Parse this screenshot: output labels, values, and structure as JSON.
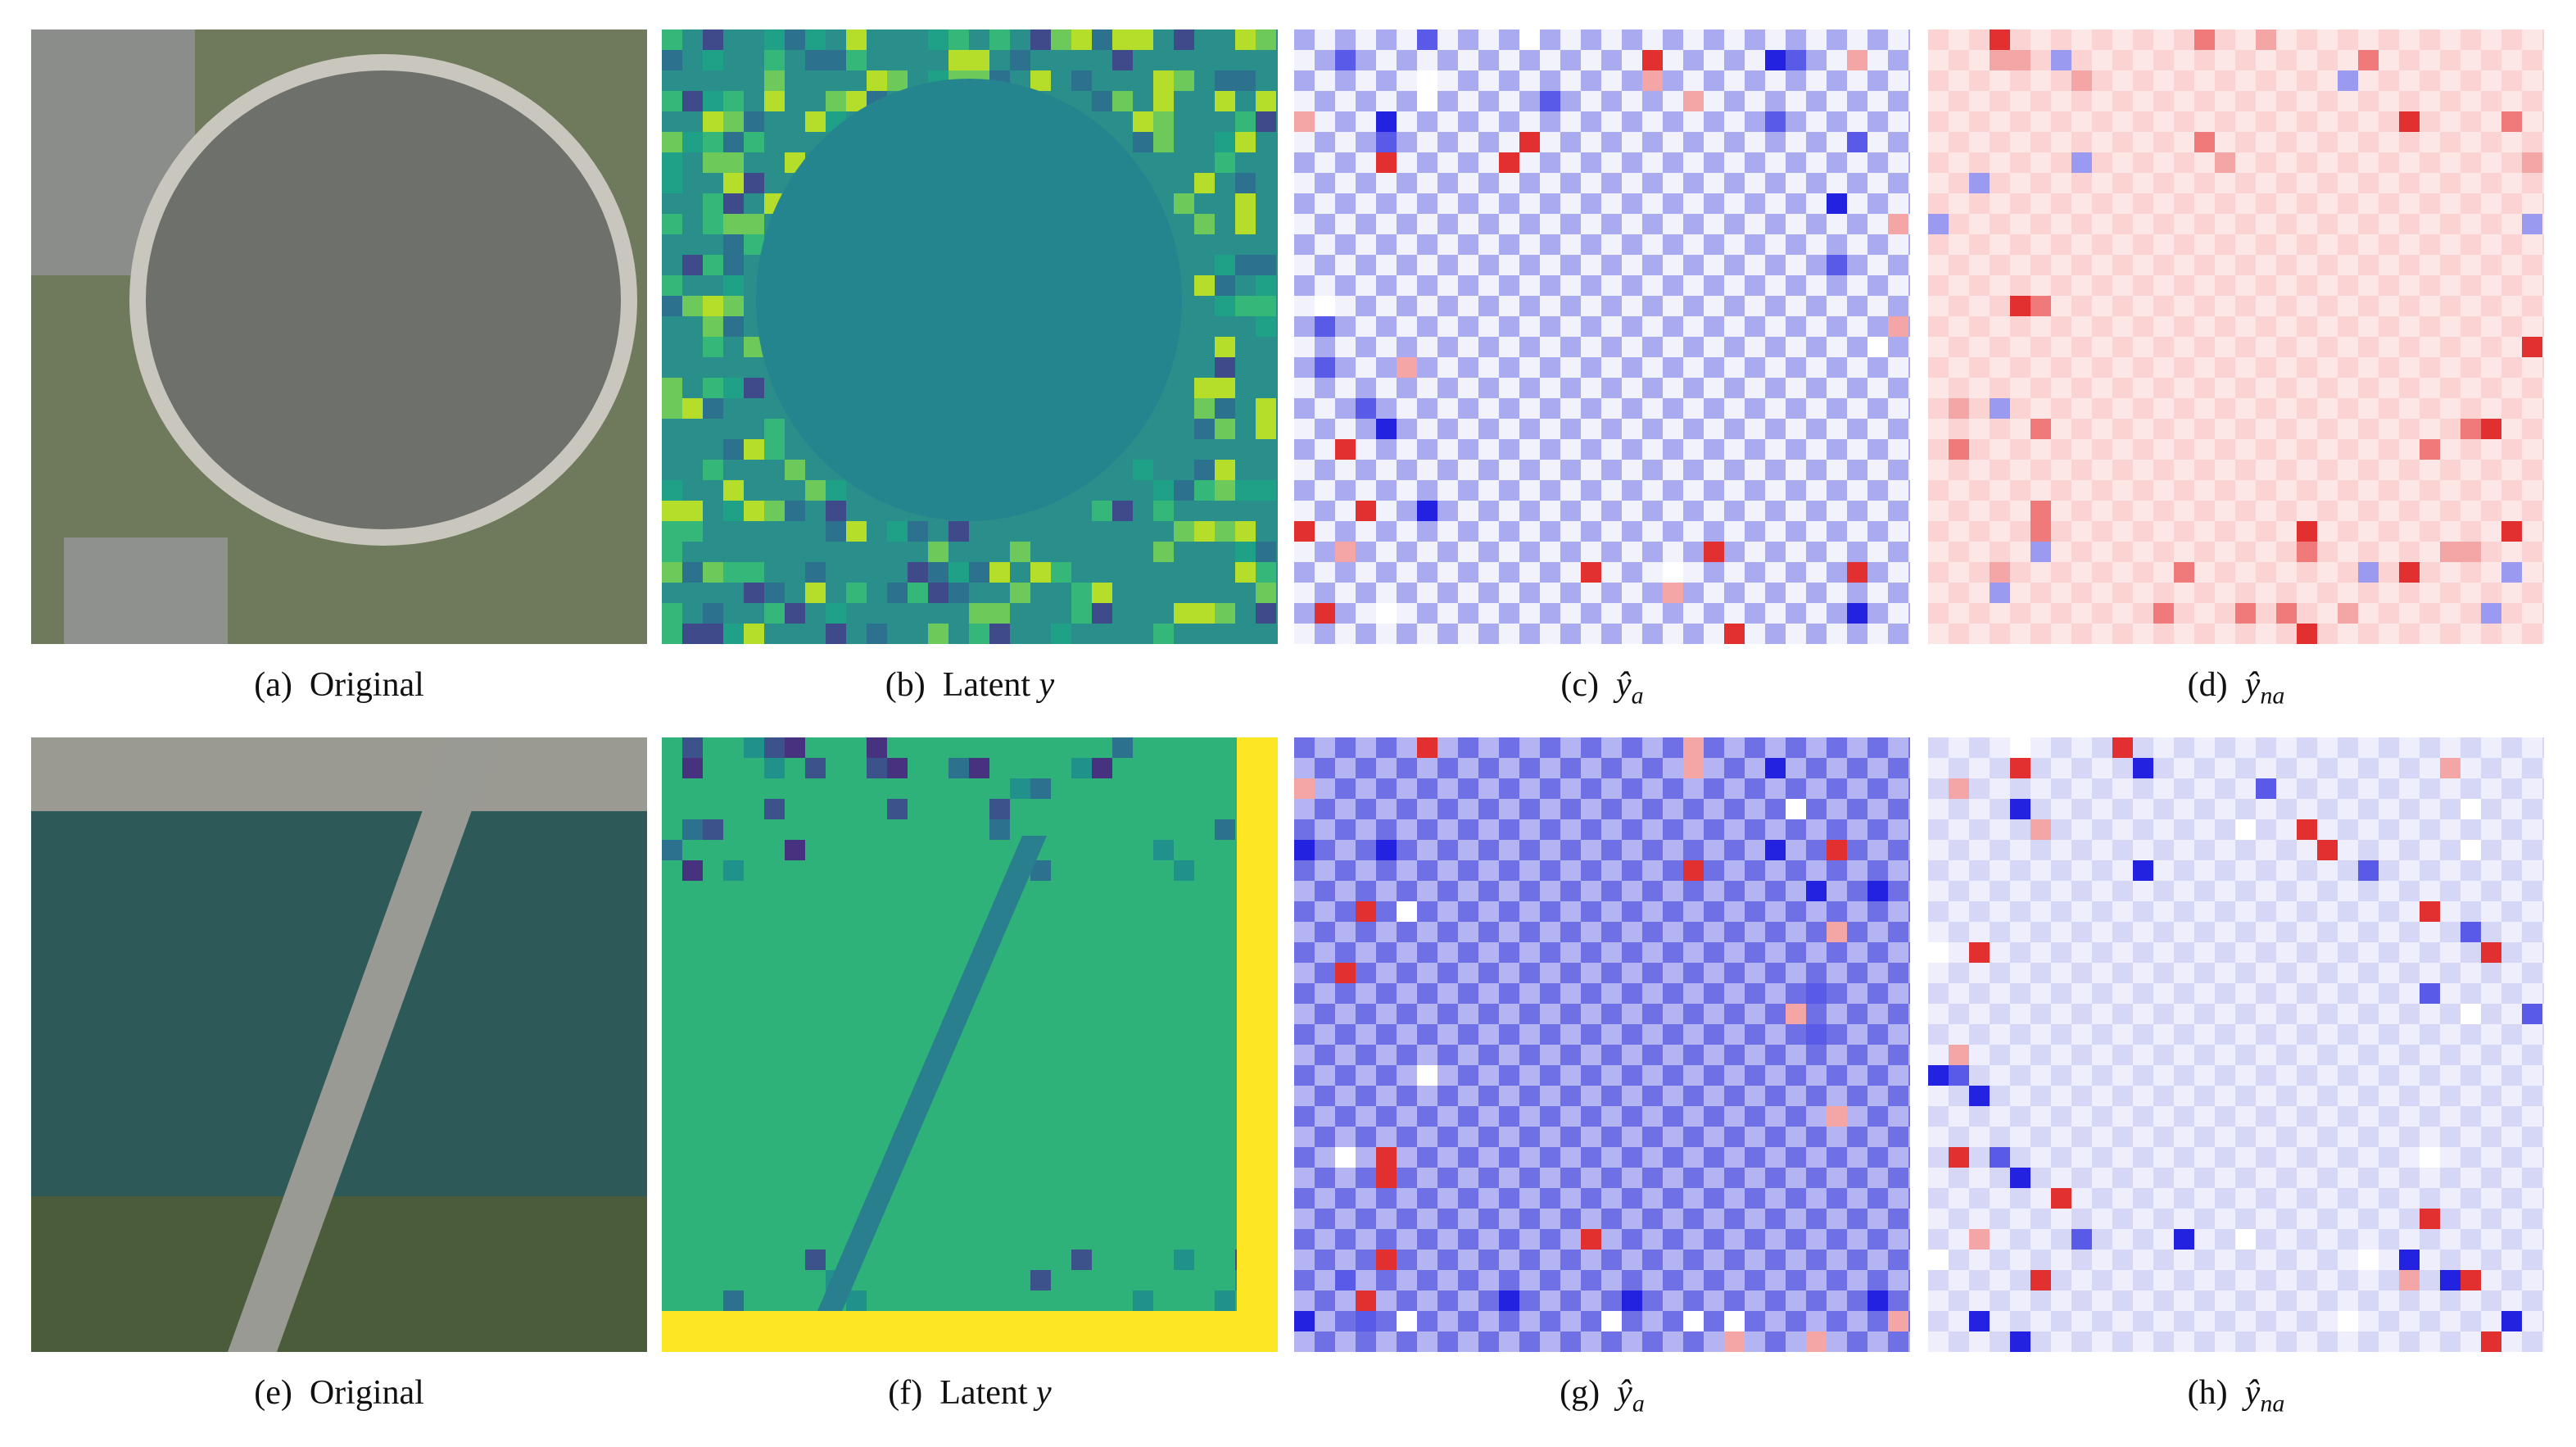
{
  "panels": [
    {
      "label": "(a)",
      "text": "Original"
    },
    {
      "label": "(b)",
      "text": "Latent",
      "math": "y"
    },
    {
      "label": "(c)",
      "math": "ŷ",
      "sub": "a"
    },
    {
      "label": "(d)",
      "math": "ŷ",
      "sub": "na"
    },
    {
      "label": "(e)",
      "text": "Original"
    },
    {
      "label": "(f)",
      "text": "Latent",
      "math": "y"
    },
    {
      "label": "(g)",
      "math": "ŷ",
      "sub": "a"
    },
    {
      "label": "(h)",
      "math": "ŷ",
      "sub": "na"
    }
  ]
}
